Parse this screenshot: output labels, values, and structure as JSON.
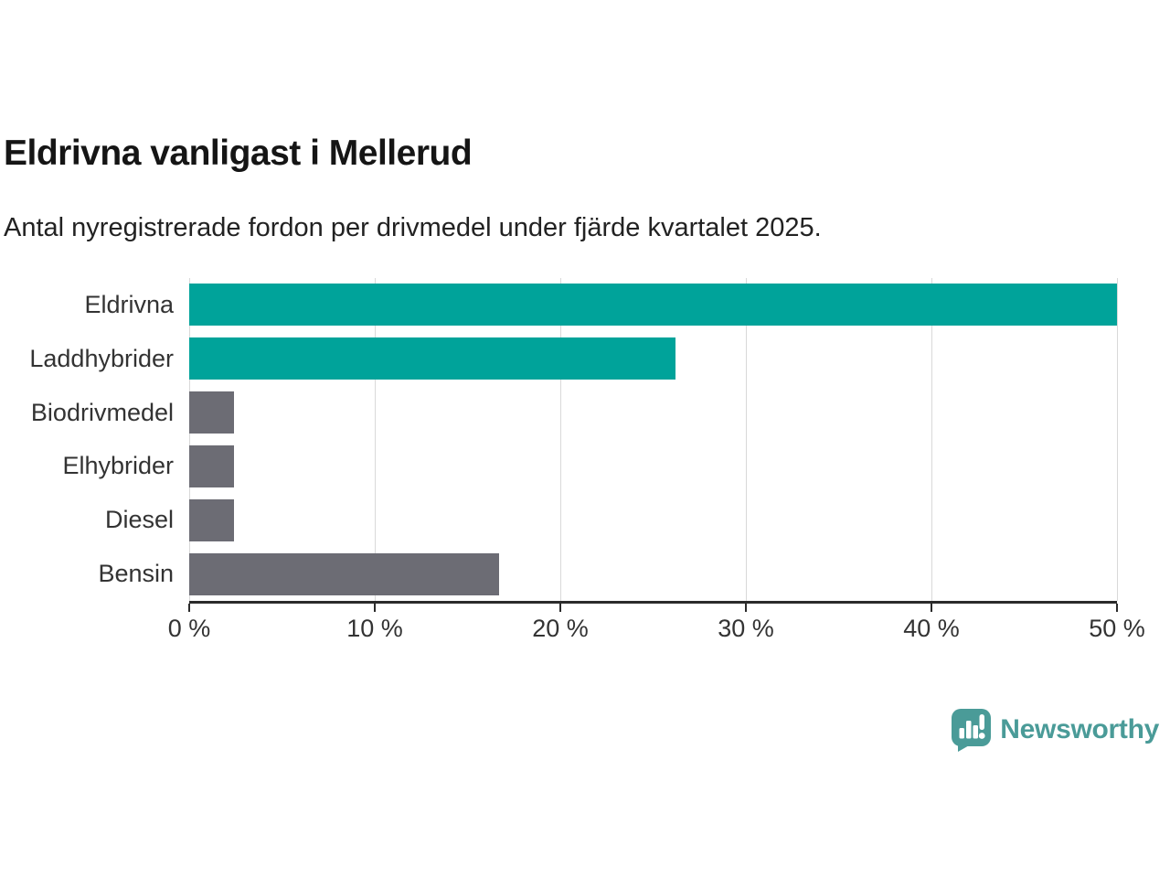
{
  "header": {
    "title": "Eldrivna vanligast i Mellerud",
    "subtitle": "Antal nyregistrerade fordon per drivmedel under fjärde kvartalet 2025."
  },
  "chart_data": {
    "type": "bar",
    "orientation": "horizontal",
    "title": "Eldrivna vanligast i Mellerud",
    "subtitle": "Antal nyregistrerade fordon per drivmedel under fjärde kvartalet 2025.",
    "categories": [
      "Eldrivna",
      "Laddhybrider",
      "Biodrivmedel",
      "Elhybrider",
      "Diesel",
      "Bensin"
    ],
    "values": [
      50.0,
      26.2,
      2.4,
      2.4,
      2.4,
      16.7
    ],
    "unit": "%",
    "bar_colors": [
      "#00a39a",
      "#00a39a",
      "#6c6c74",
      "#6c6c74",
      "#6c6c74",
      "#6c6c74"
    ],
    "xlabel": "",
    "ylabel": "",
    "xlim": [
      0,
      50
    ],
    "x_ticks": [
      "0 %",
      "10 %",
      "20 %",
      "30 %",
      "40 %",
      "50 %"
    ],
    "x_tick_values": [
      0,
      10,
      20,
      30,
      40,
      50
    ],
    "grid": "vertical-gridlines-on",
    "legend": "none"
  },
  "branding": {
    "logo_text": "Newsworthy",
    "logo_color": "#4a9b98",
    "logo_icon": "bar-chart-speech-bubble"
  },
  "colors": {
    "accent_teal": "#00a39a",
    "neutral_gray": "#6c6c74",
    "gridline": "#d9d9d9",
    "axis": "#2b2b2b",
    "label_text": "#333333"
  }
}
